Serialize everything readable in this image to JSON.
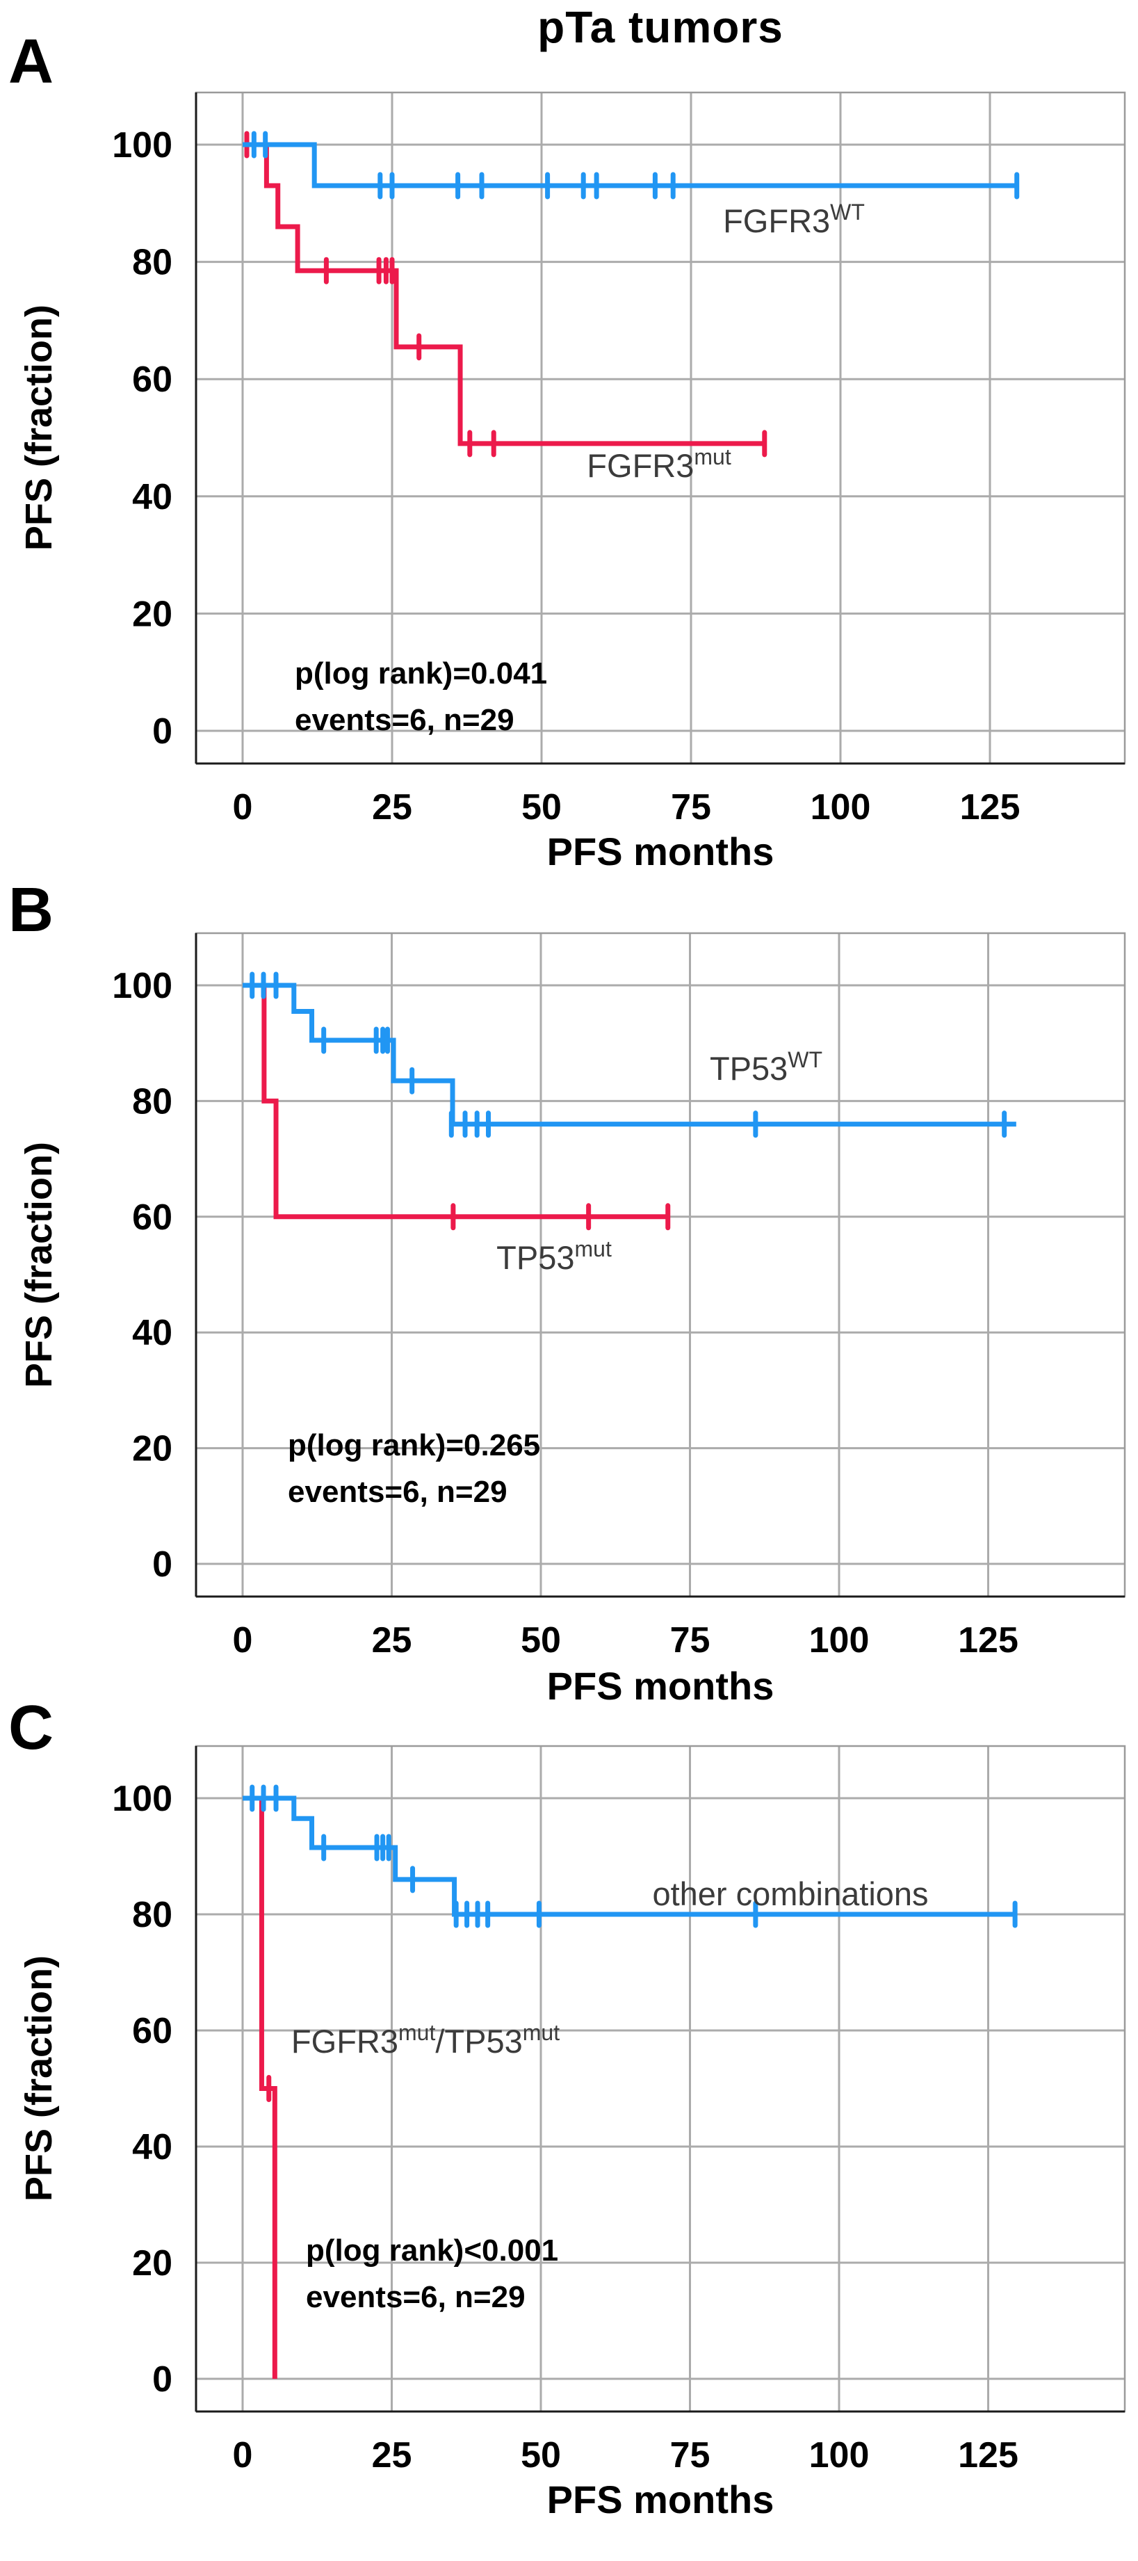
{
  "title": "pTa tumors",
  "axis": {
    "x_label": "PFS months",
    "y_label": "PFS (fraction)",
    "x_ticks": [
      0,
      25,
      50,
      75,
      100,
      125
    ],
    "y_ticks": [
      0,
      20,
      40,
      60,
      80,
      100
    ]
  },
  "colors": {
    "wt_blue": "#2196f3",
    "mut_red": "#ec1a4b",
    "grid": "#ababab",
    "box": "#9a9a9a",
    "axis": "#1a1a1a",
    "curve_label": "#3b3b3b"
  },
  "chart_data": [
    {
      "type": "line",
      "subtype": "kaplan-meier-step",
      "letter": "A",
      "title": "pTa tumors",
      "xlabel": "PFS months",
      "ylabel": "PFS (fraction)",
      "xlim": [
        0,
        132
      ],
      "ylim": [
        0,
        100
      ],
      "grid": true,
      "p_label": "p(log rank)=0.041",
      "events_label": "events=6, n=29",
      "series": [
        {
          "name": "FGFR3 wild-type",
          "color": "wt_blue",
          "label_segments": [
            {
              "text": "FGFR3"
            },
            {
              "sup": "WT"
            }
          ],
          "points": [
            [
              0,
              100
            ],
            [
              12,
              100
            ],
            [
              12,
              93
            ],
            [
              129.5,
              93
            ]
          ],
          "censors": [
            [
              1.9,
              100
            ],
            [
              3.8,
              100
            ],
            [
              23,
              93
            ],
            [
              25,
              93
            ],
            [
              36,
              93
            ],
            [
              40,
              93
            ],
            [
              51,
              93
            ],
            [
              57,
              93
            ],
            [
              59.2,
              93
            ],
            [
              69,
              93
            ],
            [
              72,
              93
            ],
            [
              129.5,
              93
            ]
          ]
        },
        {
          "name": "FGFR3 mutant",
          "color": "mut_red",
          "label_segments": [
            {
              "text": "FGFR3"
            },
            {
              "sup": "mut"
            }
          ],
          "points": [
            [
              0,
              100
            ],
            [
              4,
              100
            ],
            [
              4,
              93
            ],
            [
              5.9,
              93
            ],
            [
              5.9,
              86
            ],
            [
              9.2,
              86
            ],
            [
              9.2,
              78.5
            ],
            [
              25.7,
              78.5
            ],
            [
              25.7,
              65.5
            ],
            [
              36.4,
              65.5
            ],
            [
              36.4,
              49
            ],
            [
              87.3,
              49
            ]
          ],
          "censors": [
            [
              0.7,
              100
            ],
            [
              14,
              78.5
            ],
            [
              22.8,
              78.5
            ],
            [
              24,
              78.5
            ],
            [
              25,
              78.5
            ],
            [
              29.5,
              65.5
            ],
            [
              38,
              49
            ],
            [
              42,
              49
            ],
            [
              87.3,
              49
            ]
          ]
        }
      ]
    },
    {
      "type": "line",
      "subtype": "kaplan-meier-step",
      "letter": "B",
      "xlabel": "PFS months",
      "ylabel": "PFS (fraction)",
      "xlim": [
        0,
        132
      ],
      "ylim": [
        0,
        100
      ],
      "grid": true,
      "p_label": "p(log rank)=0.265",
      "events_label": "events=6, n=29",
      "series": [
        {
          "name": "TP53 wild-type",
          "color": "wt_blue",
          "label_segments": [
            {
              "text": "TP53"
            },
            {
              "sup": "WT"
            }
          ],
          "points": [
            [
              0,
              100
            ],
            [
              8.6,
              100
            ],
            [
              8.6,
              95.5
            ],
            [
              11.6,
              95.5
            ],
            [
              11.6,
              90.5
            ],
            [
              25.3,
              90.5
            ],
            [
              25.3,
              83.5
            ],
            [
              35.2,
              83.5
            ],
            [
              35.2,
              76
            ],
            [
              129.7,
              76
            ]
          ],
          "censors": [
            [
              1.6,
              100
            ],
            [
              3.5,
              100
            ],
            [
              5.6,
              100
            ],
            [
              13.6,
              90.5
            ],
            [
              22.4,
              90.5
            ],
            [
              23.5,
              90.5
            ],
            [
              24.3,
              90.5
            ],
            [
              28.4,
              83.5
            ],
            [
              35,
              76
            ],
            [
              37.3,
              76
            ],
            [
              39.3,
              76
            ],
            [
              41.2,
              76
            ],
            [
              86,
              76
            ],
            [
              127.7,
              76
            ]
          ]
        },
        {
          "name": "TP53 mutant",
          "color": "mut_red",
          "label_segments": [
            {
              "text": "TP53"
            },
            {
              "sup": "mut"
            }
          ],
          "points": [
            [
              0,
              100
            ],
            [
              3.6,
              100
            ],
            [
              3.6,
              80
            ],
            [
              5.6,
              80
            ],
            [
              5.6,
              60
            ],
            [
              71.6,
              60
            ]
          ],
          "censors": [
            [
              35.3,
              60
            ],
            [
              58,
              60
            ],
            [
              71.3,
              60
            ]
          ]
        }
      ]
    },
    {
      "type": "line",
      "subtype": "kaplan-meier-step",
      "letter": "C",
      "xlabel": "PFS months",
      "ylabel": "PFS (fraction)",
      "xlim": [
        0,
        132
      ],
      "ylim": [
        0,
        100
      ],
      "grid": true,
      "p_label": "p(log rank)<0.001",
      "events_label": "events=6, n=29",
      "series": [
        {
          "name": "other combinations",
          "color": "wt_blue",
          "label_segments": [
            {
              "text": "other combinations"
            }
          ],
          "points": [
            [
              0,
              100
            ],
            [
              8.6,
              100
            ],
            [
              8.6,
              96.5
            ],
            [
              11.6,
              96.5
            ],
            [
              11.6,
              91.5
            ],
            [
              25.6,
              91.5
            ],
            [
              25.6,
              86
            ],
            [
              35.5,
              86
            ],
            [
              35.5,
              80
            ],
            [
              129.5,
              80
            ]
          ],
          "censors": [
            [
              1.6,
              100
            ],
            [
              3.5,
              100
            ],
            [
              5.6,
              100
            ],
            [
              13.6,
              91.5
            ],
            [
              22.5,
              91.5
            ],
            [
              23.5,
              91.5
            ],
            [
              24.5,
              91.5
            ],
            [
              28.5,
              86
            ],
            [
              35.8,
              80
            ],
            [
              37.6,
              80
            ],
            [
              39.4,
              80
            ],
            [
              41.1,
              80
            ],
            [
              49.7,
              80
            ],
            [
              86,
              80
            ],
            [
              129.5,
              80
            ]
          ]
        },
        {
          "name": "FGFR3 mutant / TP53 mutant",
          "color": "mut_red",
          "label_segments": [
            {
              "text": "FGFR3"
            },
            {
              "sup": "mut"
            },
            {
              "text": "/TP53"
            },
            {
              "sup": "mut"
            }
          ],
          "points": [
            [
              0,
              100
            ],
            [
              3.2,
              100
            ],
            [
              3.2,
              50
            ],
            [
              5.4,
              50
            ],
            [
              5.4,
              0
            ]
          ],
          "censors": [
            [
              4.4,
              50
            ]
          ]
        }
      ]
    }
  ]
}
